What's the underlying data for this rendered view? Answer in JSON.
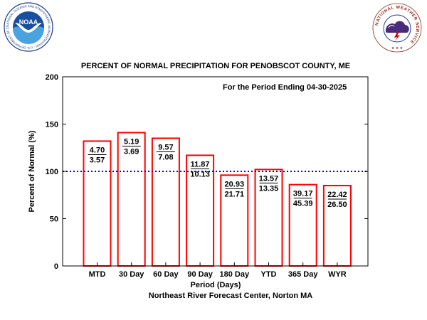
{
  "logos": {
    "noaa_text": "NOAA",
    "noaa_ring_text": "NATIONAL OCEANIC AND ATMOSPHERIC ADMINISTRATION · U.S. DEPARTMENT OF COMMERCE",
    "nws_ring_text": "NATIONAL WEATHER SERVICE"
  },
  "chart_data": {
    "type": "bar",
    "title": "PERCENT OF NORMAL PRECIPITATION FOR PENOBSCOT COUNTY, ME",
    "annotation": "For the Period Ending 04-30-2025",
    "xlabel": "Period (Days)",
    "ylabel": "Percent of Normal (%)",
    "credit": "Northeast River Forecast Center, Norton MA",
    "ylim": [
      0,
      200
    ],
    "yticks": [
      "0",
      "50",
      "100",
      "150",
      "200"
    ],
    "reference_line": 100,
    "categories": [
      "MTD",
      "30 Day",
      "60 Day",
      "90 Day",
      "180 Day",
      "YTD",
      "365 Day",
      "WYR"
    ],
    "values": [
      132,
      141,
      135,
      117,
      96,
      102,
      86,
      85
    ],
    "observed": [
      "4.70",
      "5.19",
      "9.57",
      "11.87",
      "20.93",
      "13.57",
      "39.17",
      "22.42"
    ],
    "normal": [
      "3.57",
      "3.69",
      "7.08",
      "10.13",
      "21.71",
      "13.35",
      "45.39",
      "26.50"
    ],
    "colors": {
      "bar": "#ff0000",
      "reference": "#0000cc",
      "axis": "#000000"
    },
    "grid": false
  }
}
